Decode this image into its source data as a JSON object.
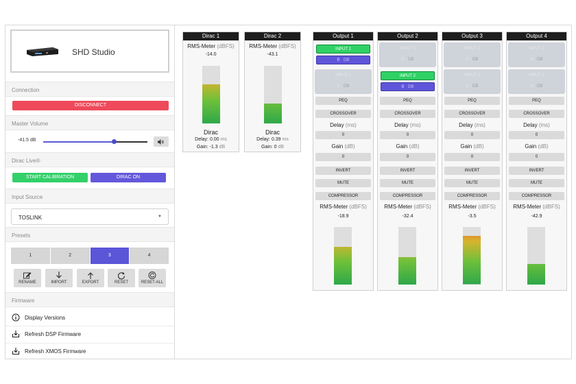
{
  "device": {
    "name": "SHD Studio"
  },
  "sidebar": {
    "connection_label": "Connection",
    "disconnect_label": "DISCONNECT",
    "master_volume_label": "Master Volume",
    "volume_value": "-41.5 dB",
    "volume_fraction": 0.68,
    "dirac_live_label": "Dirac Live®",
    "start_calibration_label": "START CALIBRATION",
    "dirac_on_label": "DIRAC ON",
    "input_source_label": "Input Source",
    "input_source_value": "TOSLINK",
    "presets_label": "Presets",
    "presets": [
      "1",
      "2",
      "3",
      "4"
    ],
    "active_preset": 2,
    "actions": [
      {
        "label": "RENAME",
        "icon": "rename-icon"
      },
      {
        "label": "IMPORT",
        "icon": "import-icon"
      },
      {
        "label": "EXPORT",
        "icon": "export-icon"
      },
      {
        "label": "RESET",
        "icon": "reset-icon"
      },
      {
        "label": "RESET-ALL",
        "icon": "reset-all-icon"
      }
    ],
    "firmware_label": "Firmware",
    "firmware_items": [
      {
        "label": "Display Versions",
        "icon": "info-icon"
      },
      {
        "label": "Refresh DSP Firmware",
        "icon": "refresh-firmware-icon"
      },
      {
        "label": "Refresh XMOS Firmware",
        "icon": "refresh-firmware-icon"
      }
    ]
  },
  "labels": {
    "rms_meter": "RMS-Meter",
    "dbfs": "(dBFS)",
    "dirac": "Dirac",
    "delay": "Delay:",
    "gain": "Gain:",
    "ms": "ms",
    "db_lower": "dB",
    "input1": "INPUT 1",
    "input2": "INPUT 2",
    "db_upper": "DB",
    "peq": "PEQ",
    "crossover": "CROSSOVER",
    "delay_title": "Delay",
    "ms_paren": "(ms)",
    "gain_title": "Gain",
    "db_paren": "(dB)",
    "invert": "INVERT",
    "mute": "MUTE",
    "compressor": "COMPRESSOR"
  },
  "dirac_panels": [
    {
      "title": "Dirac 1",
      "rms": "-14.0",
      "level": 0.68,
      "delay": "0.00",
      "gain": "-1.3"
    },
    {
      "title": "Dirac 2",
      "rms": "-43.1",
      "level": 0.35,
      "delay": "0.39",
      "gain": "0"
    }
  ],
  "outputs": [
    {
      "title": "Output 1",
      "input1_value": "0",
      "input2_value": "0",
      "active_input": 1,
      "delay": "0",
      "gain": "0",
      "rms": "-18.9",
      "level": 0.66
    },
    {
      "title": "Output 2",
      "input1_value": "0",
      "input2_value": "0",
      "active_input": 2,
      "delay": "0",
      "gain": "0",
      "rms": "-32.4",
      "level": 0.48
    },
    {
      "title": "Output 3",
      "input1_value": "0",
      "input2_value": "0",
      "active_input": 0,
      "delay": "0",
      "gain": "0",
      "rms": "-3.5",
      "level": 0.84
    },
    {
      "title": "Output 4",
      "input1_value": "0",
      "input2_value": "0",
      "active_input": 0,
      "delay": "0",
      "gain": "0",
      "rms": "-42.9",
      "level": 0.36
    }
  ],
  "colors": {
    "disconnect": "#ee4a5b",
    "green": "#33d06a",
    "purple": "#6358db",
    "title_bar": "#1e1e1e"
  }
}
